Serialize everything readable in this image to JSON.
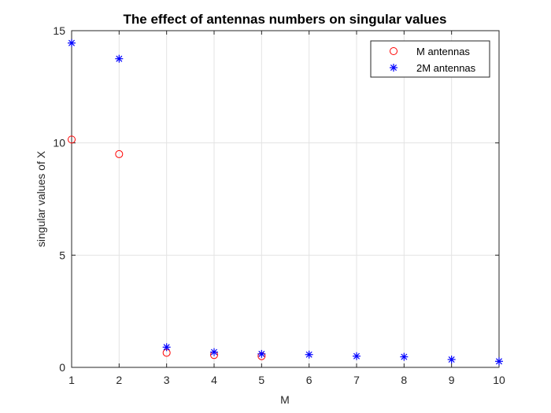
{
  "chart_data": {
    "type": "scatter",
    "title": "The effect of antennas numbers on singular values",
    "xlabel": "M",
    "ylabel": "singular values of X",
    "xlim": [
      1,
      10
    ],
    "ylim": [
      0,
      15
    ],
    "xticks": [
      1,
      2,
      3,
      4,
      5,
      6,
      7,
      8,
      9,
      10
    ],
    "yticks": [
      0,
      5,
      10,
      15
    ],
    "grid": true,
    "legend_position": "top-right",
    "series": [
      {
        "name": "M antennas",
        "marker": "circle",
        "color": "#ff0000",
        "x": [
          1,
          2,
          3,
          4,
          5
        ],
        "y": [
          10.15,
          9.5,
          0.65,
          0.55,
          0.5
        ]
      },
      {
        "name": "2M antennas",
        "marker": "asterisk",
        "color": "#0000ff",
        "x": [
          1,
          2,
          3,
          4,
          5,
          6,
          7,
          8,
          9,
          10
        ],
        "y": [
          14.45,
          13.75,
          0.9,
          0.68,
          0.6,
          0.57,
          0.5,
          0.47,
          0.35,
          0.27
        ]
      }
    ]
  }
}
